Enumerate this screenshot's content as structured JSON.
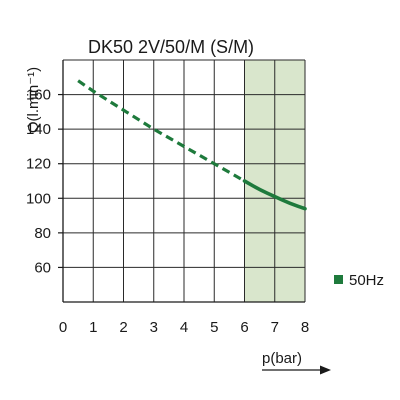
{
  "chart_data": {
    "type": "line",
    "title": "DK50 2V/50/M (S/M)",
    "xlabel": "p(bar)",
    "ylabel": "Q(l.min⁻¹)",
    "x_ticks": [
      0,
      1,
      2,
      3,
      4,
      5,
      6,
      7,
      8
    ],
    "y_ticks": [
      60,
      80,
      100,
      120,
      140,
      160
    ],
    "xlim": [
      0,
      8
    ],
    "ylim": [
      40,
      180
    ],
    "grid": true,
    "shaded_region": {
      "x": [
        6,
        8
      ],
      "color": "#d9e6cc"
    },
    "series": [
      {
        "name": "50Hz",
        "color": "#1e7a3c",
        "dashed_segment": {
          "x": [
            0.5,
            1,
            2,
            3,
            4,
            5,
            6
          ],
          "y": [
            168,
            162,
            151,
            140,
            130,
            120,
            110
          ]
        },
        "solid_segment": {
          "x": [
            6,
            6.5,
            7,
            7.5,
            8
          ],
          "y": [
            110,
            105,
            101,
            97,
            94
          ]
        }
      }
    ],
    "legend": {
      "position": "right",
      "label": "50Hz"
    }
  }
}
